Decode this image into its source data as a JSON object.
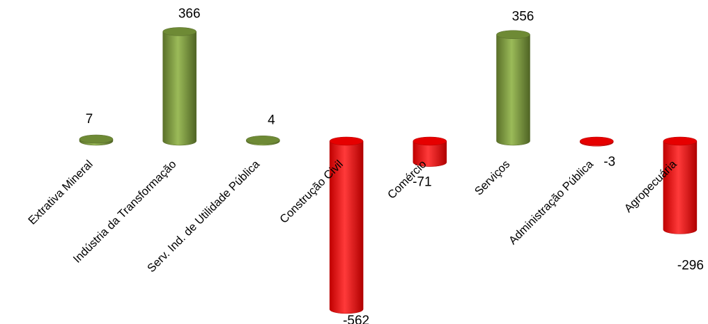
{
  "chart_data": {
    "type": "bar",
    "style": "3d-cylinder",
    "title": "",
    "xlabel": "",
    "ylabel": "",
    "grid": false,
    "legend": "none",
    "categories": [
      "Extrativa Mineral",
      "Indústria da Transformação",
      "Serv. Ind. de Utilidade Pública",
      "Construção Civil",
      "Comércio",
      "Serviços",
      "Administração Pública",
      "Agropecuária"
    ],
    "values": [
      7,
      366,
      4,
      -562,
      -71,
      356,
      -3,
      -296
    ],
    "value_labels": [
      "7",
      "366",
      "4",
      "-562",
      "-71",
      "356",
      "-3",
      "-296"
    ],
    "colors": {
      "positive": "#77933C",
      "negative": "#FF0000"
    }
  }
}
